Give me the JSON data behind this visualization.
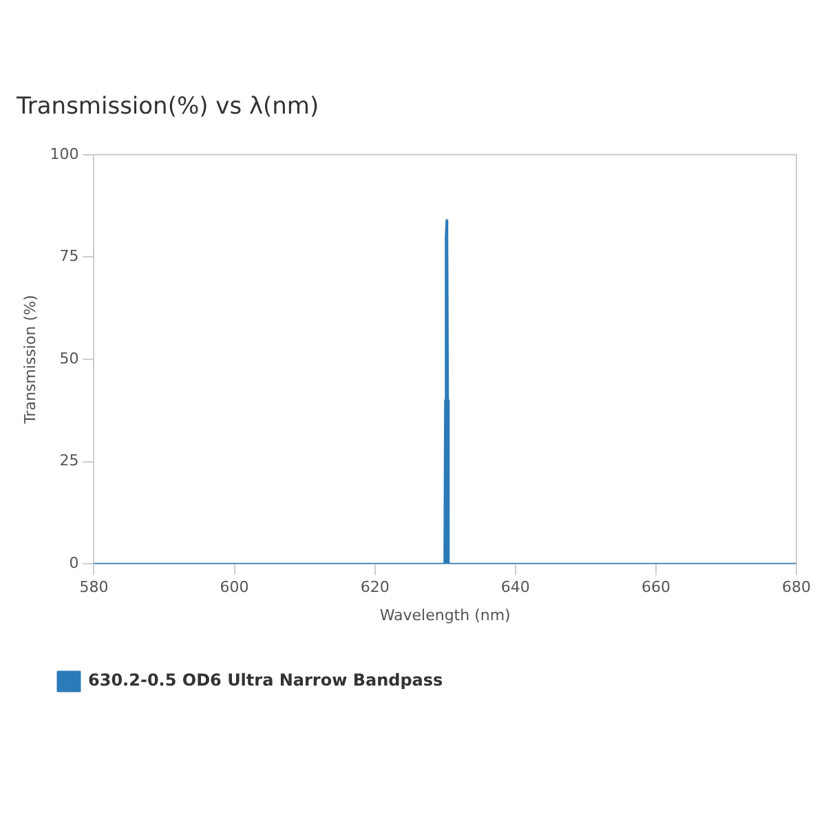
{
  "chart_data": {
    "type": "area",
    "title": "Transmission(%) vs λ(nm)",
    "xlabel": "Wavelength (nm)",
    "ylabel": "Transmission (%)",
    "x": [
      580,
      629.9,
      630.0,
      630.1,
      630.2,
      630.3,
      630.4,
      630.5,
      680
    ],
    "series": [
      {
        "name": "630.2-0.5 OD6 Ultra Narrow Bandpass",
        "color": "#2b7bb9",
        "values": [
          0,
          0,
          40,
          80,
          84,
          80,
          40,
          0,
          0
        ]
      }
    ],
    "xlim": [
      580,
      680
    ],
    "xticks": [
      580,
      600,
      620,
      640,
      660,
      680
    ],
    "ylim": [
      0,
      100
    ],
    "yticks": [
      0,
      25,
      50,
      75,
      100
    ],
    "grid": false,
    "legend": "bottom left"
  }
}
